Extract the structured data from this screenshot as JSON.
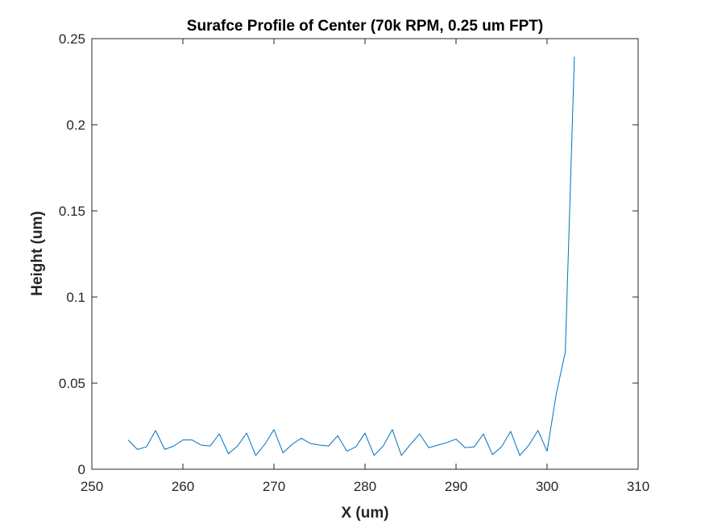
{
  "chart_data": {
    "type": "line",
    "title": "Surafce Profile of Center (70k RPM, 0.25 um FPT)",
    "xlabel": "X (um)",
    "ylabel": "Height (um)",
    "xlim": [
      250,
      310
    ],
    "ylim": [
      0,
      0.25
    ],
    "xticks": [
      250,
      260,
      270,
      280,
      290,
      300,
      310
    ],
    "yticks": [
      0,
      0.05,
      0.1,
      0.15,
      0.2,
      0.25
    ],
    "xtick_labels": [
      "250",
      "260",
      "270",
      "280",
      "290",
      "300",
      "310"
    ],
    "ytick_labels": [
      "0",
      "0.05",
      "0.1",
      "0.15",
      "0.2",
      "0.25"
    ],
    "grid": false,
    "series": [
      {
        "color": "#0072BD",
        "x": [
          254,
          255,
          256,
          257,
          258,
          259,
          260,
          261,
          262,
          263,
          264,
          265,
          266,
          267,
          268,
          269,
          270,
          271,
          272,
          273,
          274,
          275,
          276,
          277,
          278,
          279,
          280,
          281,
          282,
          283,
          284,
          285,
          286,
          287,
          288,
          289,
          290,
          291,
          292,
          293,
          294,
          295,
          296,
          297,
          298,
          299,
          300,
          301,
          302,
          303
        ],
        "y": [
          0.017,
          0.0115,
          0.013,
          0.0225,
          0.0115,
          0.0135,
          0.017,
          0.017,
          0.014,
          0.0135,
          0.0205,
          0.009,
          0.0135,
          0.021,
          0.008,
          0.0145,
          0.023,
          0.0095,
          0.0145,
          0.018,
          0.015,
          0.014,
          0.0135,
          0.0195,
          0.0105,
          0.013,
          0.021,
          0.008,
          0.0135,
          0.023,
          0.008,
          0.0145,
          0.0205,
          0.0125,
          0.014,
          0.0155,
          0.0175,
          0.0125,
          0.013,
          0.0205,
          0.0085,
          0.013,
          0.022,
          0.008,
          0.014,
          0.0225,
          0.0105,
          0.0435,
          0.068,
          0.2395
        ]
      }
    ]
  }
}
